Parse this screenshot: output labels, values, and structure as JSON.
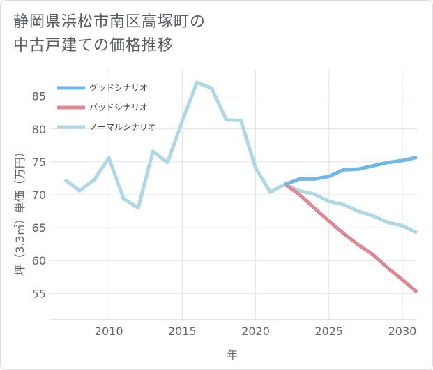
{
  "chart_data": {
    "type": "line",
    "title": [
      "静岡県浜松市南区高塚町の",
      "中古戸建ての価格推移"
    ],
    "xlabel": "年",
    "ylabel": "坪（3.3㎡）単価（万円）",
    "xlim": [
      2006,
      2031
    ],
    "ylim": [
      51,
      89
    ],
    "xticks": [
      2010,
      2015,
      2020,
      2025,
      2030
    ],
    "yticks": [
      55,
      60,
      65,
      70,
      75,
      80,
      85
    ],
    "grid": true,
    "legend_position": "top-left",
    "series": [
      {
        "name": "グッドシナリオ",
        "color": "#6cb8ec",
        "x": [
          2022,
          2023,
          2024,
          2025,
          2026,
          2027,
          2028,
          2029,
          2030,
          2031
        ],
        "y": [
          71.6,
          72.4,
          72.4,
          72.8,
          73.8,
          73.9,
          74.4,
          74.9,
          75.2,
          75.7
        ]
      },
      {
        "name": "バッドシナリオ",
        "color": "#e08890",
        "x": [
          2022,
          2023,
          2024,
          2025,
          2026,
          2027,
          2028,
          2029,
          2030,
          2031
        ],
        "y": [
          71.6,
          70.0,
          68.0,
          66.0,
          64.1,
          62.4,
          60.9,
          58.9,
          57.1,
          55.2
        ]
      },
      {
        "name": "ノーマルシナリオ",
        "color": "#add8e6",
        "x": [
          2007,
          2008,
          2009,
          2010,
          2011,
          2012,
          2013,
          2014,
          2015,
          2016,
          2017,
          2018,
          2019,
          2020,
          2021,
          2022,
          2023,
          2024,
          2025,
          2026,
          2027,
          2028,
          2029,
          2030,
          2031
        ],
        "y": [
          72.3,
          70.6,
          72.3,
          75.6,
          69.4,
          68.0,
          76.6,
          74.9,
          81.2,
          87.1,
          86.2,
          81.4,
          81.3,
          74.1,
          70.4,
          71.6,
          70.6,
          70.1,
          69.0,
          68.5,
          67.5,
          66.8,
          65.8,
          65.3,
          64.2
        ]
      }
    ]
  }
}
